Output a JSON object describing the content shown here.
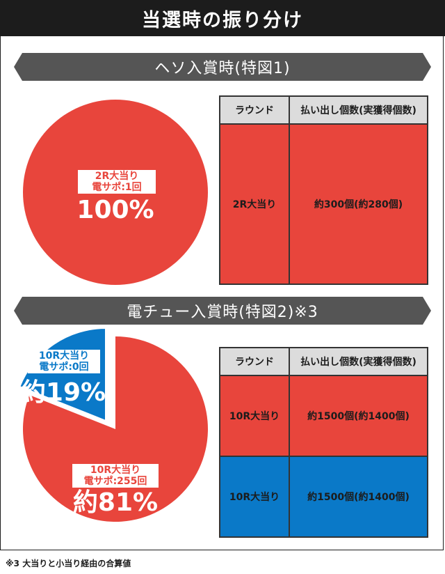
{
  "page_title": "当選時の振り分け",
  "footnote": "※3 大当りと小当り経由の合算値",
  "colors": {
    "red": "#e8453c",
    "blue": "#0a79c8",
    "dark": "#1c1c1c",
    "banner": "#555555",
    "header_gray": "#dcdcdc"
  },
  "chart_data": [
    {
      "type": "pie",
      "title": "ヘソ入賞時(特図1)",
      "slices": [
        {
          "label_line1": "2R大当り",
          "label_line2": "電サポ:1回",
          "pct_label": "100%",
          "value": 100,
          "color": "#e8453c"
        }
      ],
      "table": {
        "headers": [
          "ラウンド",
          "払い出し個数(実獲得個数)"
        ],
        "rows": [
          {
            "round": "2R大当り",
            "payout": "約300個(約280個)",
            "color": "#e8453c"
          }
        ]
      }
    },
    {
      "type": "pie",
      "title": "電チュー入賞時(特図2)※3",
      "slices": [
        {
          "label_line1": "10R大当り",
          "label_line2": "電サポ:0回",
          "pct_label": "約19%",
          "value": 19,
          "color": "#0a79c8"
        },
        {
          "label_line1": "10R大当り",
          "label_line2": "電サポ:255回",
          "pct_label": "約81%",
          "value": 81,
          "color": "#e8453c"
        }
      ],
      "table": {
        "headers": [
          "ラウンド",
          "払い出し個数(実獲得個数)"
        ],
        "rows": [
          {
            "round": "10R大当り",
            "payout": "約1500個(約1400個)",
            "color": "#e8453c"
          },
          {
            "round": "10R大当り",
            "payout": "約1500個(約1400個)",
            "color": "#0a79c8"
          }
        ]
      }
    }
  ]
}
